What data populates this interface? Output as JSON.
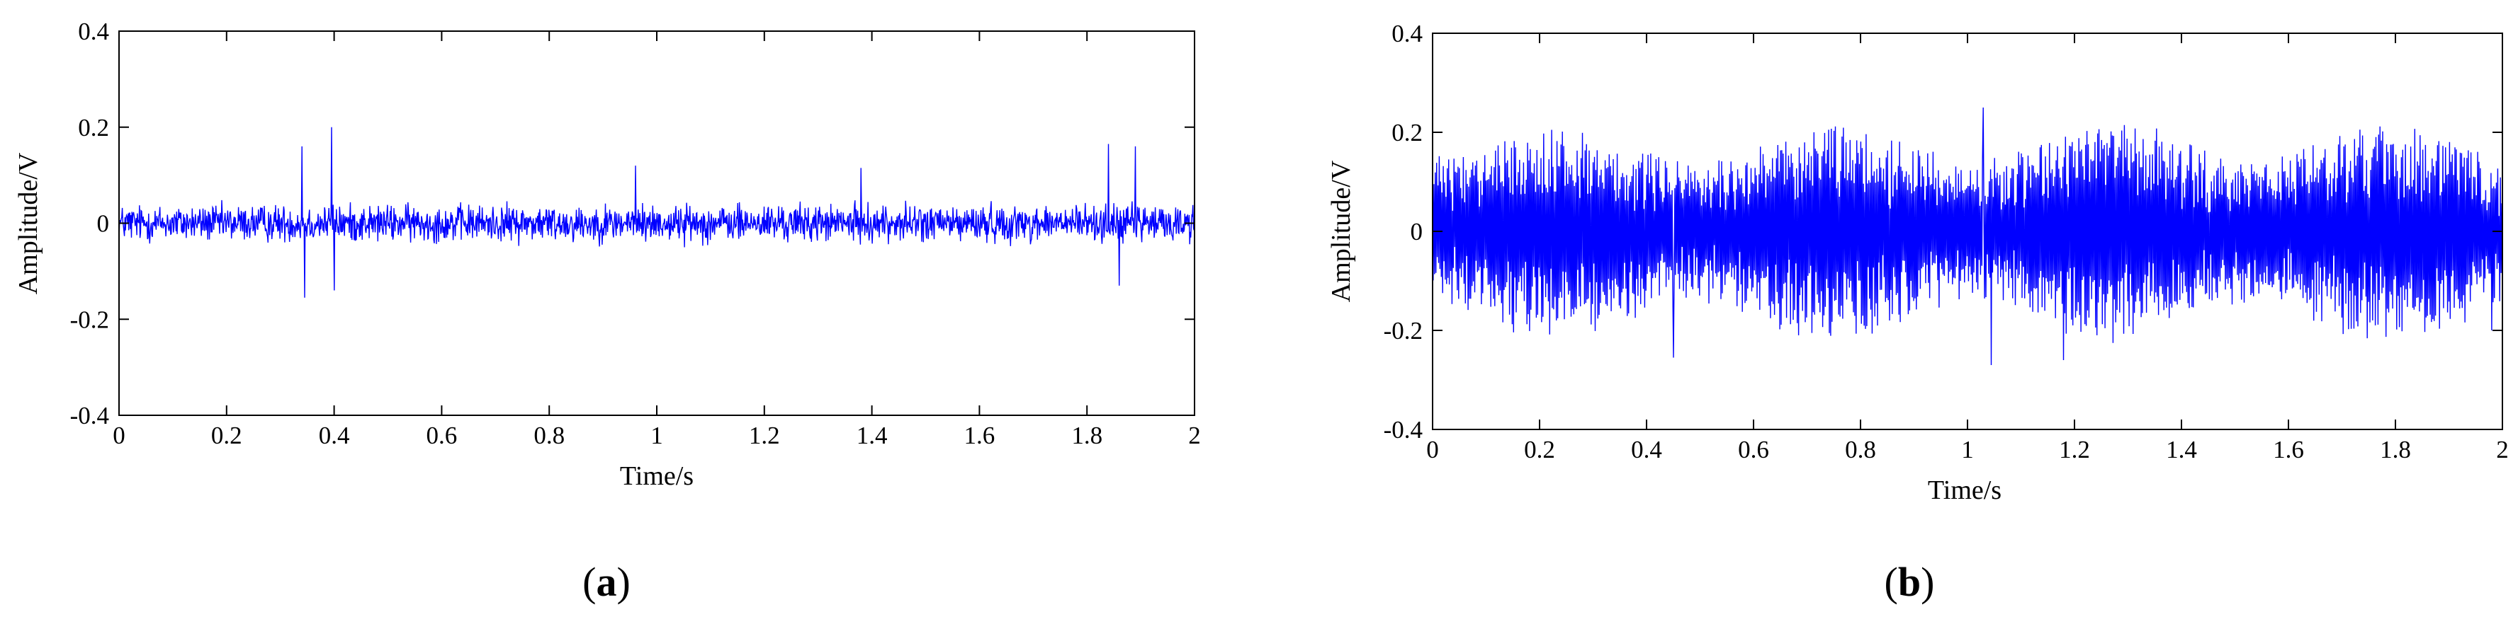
{
  "chart_data": [
    {
      "type": "line",
      "title": "",
      "xlabel": "Time/s",
      "ylabel": "Amplitude/V",
      "xlim": [
        0,
        2
      ],
      "ylim": [
        -0.4,
        0.4
      ],
      "grid": false,
      "series_color": "#0000ff",
      "xticks": [
        0,
        0.2,
        0.4,
        0.6,
        0.8,
        1,
        1.2,
        1.4,
        1.6,
        1.8,
        2
      ],
      "xtick_labels": [
        "0",
        "0.2",
        "0.4",
        "0.6",
        "0.8",
        "1",
        "1.2",
        "1.4",
        "1.6",
        "1.8",
        "2"
      ],
      "yticks": [
        0.4,
        0.2,
        0,
        -0.2,
        -0.4
      ],
      "ytick_labels": [
        "0.4",
        "0.2",
        "0",
        "-0.2",
        "-0.4"
      ],
      "signal": {
        "samples": 2000,
        "noise_amplitude": 0.035,
        "envelope": "flat",
        "spikes": [
          {
            "t": 0.34,
            "v": 0.16
          },
          {
            "t": 0.345,
            "v": -0.155
          },
          {
            "t": 0.395,
            "v": 0.2
          },
          {
            "t": 0.4,
            "v": -0.14
          },
          {
            "t": 0.96,
            "v": 0.12
          },
          {
            "t": 1.38,
            "v": 0.115
          },
          {
            "t": 1.84,
            "v": 0.165
          },
          {
            "t": 1.86,
            "v": -0.13
          },
          {
            "t": 1.89,
            "v": 0.16
          }
        ]
      },
      "caption": "a"
    },
    {
      "type": "line",
      "title": "",
      "xlabel": "Time/s",
      "ylabel": "Amplitude/V",
      "xlim": [
        0,
        2
      ],
      "ylim": [
        -0.4,
        0.4
      ],
      "grid": false,
      "series_color": "#0000ff",
      "xticks": [
        0,
        0.2,
        0.4,
        0.6,
        0.8,
        1,
        1.2,
        1.4,
        1.6,
        1.8,
        2
      ],
      "xtick_labels": [
        "0",
        "0.2",
        "0.4",
        "0.6",
        "0.8",
        "1",
        "1.2",
        "1.4",
        "1.6",
        "1.8",
        "2"
      ],
      "yticks": [
        0.4,
        0.2,
        0,
        -0.2,
        -0.4
      ],
      "ytick_labels": [
        "0.4",
        "0.2",
        "0",
        "-0.2",
        "-0.4"
      ],
      "signal": {
        "samples": 1600,
        "noise_amplitude": 0.175,
        "envelope": "modulated",
        "envelope_min": 0.13,
        "envelope_max": 0.21,
        "envelope_period": 0.52,
        "spikes": [
          {
            "t": 1.03,
            "v": 0.25
          },
          {
            "t": 1.045,
            "v": -0.27
          },
          {
            "t": 0.45,
            "v": -0.255
          },
          {
            "t": 1.18,
            "v": -0.26
          },
          {
            "t": 1.98,
            "v": -0.2
          }
        ]
      },
      "caption": "b"
    }
  ]
}
